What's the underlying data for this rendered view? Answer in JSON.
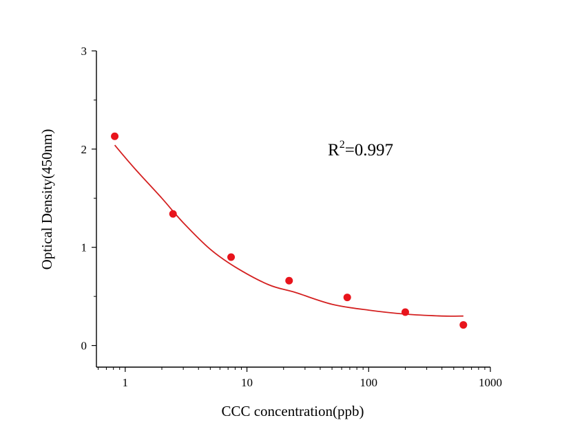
{
  "chart_data": {
    "type": "scatter",
    "xlabel": "CCC concentration(ppb)",
    "ylabel": "Optical Density(450nm)",
    "x_scale": "log",
    "xlim": [
      0.58,
      1000
    ],
    "ylim": [
      -0.22,
      3
    ],
    "x_ticks": [
      1,
      10,
      100,
      1000
    ],
    "x_tick_labels": [
      "1",
      "10",
      "100",
      "1000"
    ],
    "y_ticks": [
      0,
      1,
      2,
      3
    ],
    "y_tick_labels": [
      "0",
      "1",
      "2",
      "3"
    ],
    "grid": false,
    "series": [
      {
        "type": "scatter",
        "x": [
          0.82,
          2.47,
          7.41,
          22.2,
          66.7,
          200,
          600
        ],
        "y": [
          2.13,
          1.34,
          0.9,
          0.66,
          0.49,
          0.34,
          0.21
        ],
        "color": "#e8141c"
      },
      {
        "type": "line",
        "x": [
          0.82,
          1.2,
          2.0,
          3.0,
          5.0,
          8.0,
          15,
          25,
          50,
          100,
          200,
          400,
          600
        ],
        "y": [
          2.04,
          1.8,
          1.5,
          1.25,
          0.98,
          0.8,
          0.62,
          0.54,
          0.42,
          0.36,
          0.32,
          0.3,
          0.3
        ],
        "color": "#d42020"
      }
    ],
    "annotation": {
      "base": "R",
      "superscript": "2",
      "rest": "=0.997"
    }
  }
}
